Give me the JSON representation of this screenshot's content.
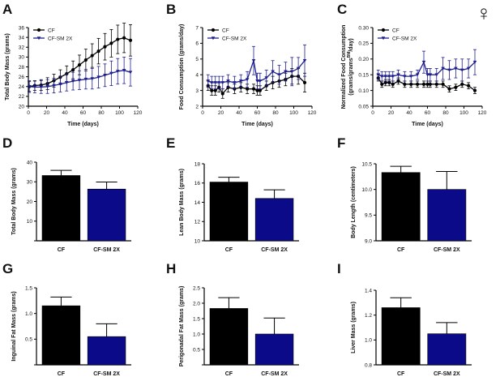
{
  "figure": {
    "sex_symbol": "♀"
  },
  "chart_data": [
    {
      "panel": "A",
      "type": "line",
      "xlabel": "Time (days)",
      "ylabel": "Total Body Mass (grams)",
      "xlim": [
        0,
        120
      ],
      "ylim": [
        20,
        36
      ],
      "xticks": [
        0,
        20,
        40,
        60,
        80,
        100,
        120
      ],
      "yticks": [
        20,
        22,
        24,
        26,
        28,
        30,
        32,
        34,
        36
      ],
      "legend": "top-left",
      "x": [
        1,
        7,
        14,
        21,
        28,
        35,
        42,
        49,
        56,
        63,
        70,
        77,
        84,
        91,
        98,
        105,
        112
      ],
      "series": [
        {
          "name": "CF",
          "color": "#000000",
          "values": [
            24.0,
            24.2,
            24.3,
            24.6,
            25.2,
            25.9,
            26.6,
            27.4,
            28.4,
            29.4,
            30.3,
            31.2,
            32.1,
            32.8,
            33.6,
            33.9,
            33.4
          ],
          "errors": [
            1.0,
            1.0,
            1.1,
            1.2,
            1.3,
            1.5,
            1.6,
            1.8,
            2.0,
            2.2,
            2.4,
            2.6,
            2.7,
            2.8,
            2.9,
            3.0,
            3.2
          ]
        },
        {
          "name": "CF-SM 2X",
          "color": "#1f1f8f",
          "values": [
            24.0,
            23.9,
            23.9,
            24.0,
            24.2,
            24.5,
            24.8,
            25.1,
            25.3,
            25.5,
            25.6,
            25.9,
            26.3,
            26.7,
            27.1,
            27.3,
            26.9
          ],
          "errors": [
            1.2,
            1.2,
            1.3,
            1.4,
            1.5,
            1.6,
            1.7,
            1.8,
            1.9,
            2.0,
            2.1,
            2.2,
            2.3,
            2.5,
            2.6,
            2.7,
            2.8
          ]
        }
      ]
    },
    {
      "panel": "B",
      "type": "line",
      "xlabel": "Time (days)",
      "ylabel": "Food Consumption (grams/day)",
      "xlim": [
        0,
        120
      ],
      "ylim": [
        2,
        7
      ],
      "xticks": [
        0,
        20,
        40,
        60,
        80,
        100,
        120
      ],
      "yticks": [
        2,
        3,
        4,
        5,
        6,
        7
      ],
      "legend": "top-left",
      "x": [
        6,
        10,
        14,
        18,
        22,
        28,
        35,
        42,
        49,
        56,
        60,
        63,
        70,
        77,
        84,
        91,
        98,
        105,
        112
      ],
      "series": [
        {
          "name": "CF",
          "color": "#000000",
          "values": [
            3.3,
            3.0,
            3.0,
            3.2,
            2.8,
            3.2,
            3.1,
            3.2,
            3.1,
            3.1,
            3.0,
            3.0,
            3.3,
            3.5,
            3.6,
            3.7,
            3.9,
            3.9,
            3.5
          ],
          "errors": [
            0.3,
            0.3,
            0.3,
            0.3,
            0.3,
            0.3,
            0.3,
            0.3,
            0.3,
            0.3,
            0.3,
            0.3,
            0.3,
            0.4,
            0.4,
            0.4,
            0.5,
            0.5,
            0.6
          ]
        },
        {
          "name": "CF-SM 2X",
          "color": "#1f1f8f",
          "values": [
            3.6,
            3.5,
            3.5,
            3.5,
            3.5,
            3.6,
            3.5,
            3.6,
            3.7,
            4.9,
            3.6,
            3.6,
            3.8,
            4.2,
            4.0,
            4.2,
            4.2,
            4.4,
            4.9
          ],
          "errors": [
            0.4,
            0.4,
            0.4,
            0.4,
            0.4,
            0.4,
            0.4,
            0.4,
            0.5,
            0.9,
            0.5,
            0.5,
            0.5,
            0.7,
            0.6,
            0.6,
            0.9,
            0.7,
            1.0
          ]
        }
      ]
    },
    {
      "panel": "C",
      "type": "line",
      "xlabel": "Time (days)",
      "ylabel_line1": "Normalized Food Consumption",
      "ylabel_line2": "(grams/grams",
      "ylabel_sup": "BM",
      "ylabel_line2_end": "/day)",
      "xlim": [
        0,
        120
      ],
      "ylim": [
        0.05,
        0.3
      ],
      "xticks": [
        0,
        20,
        40,
        60,
        80,
        100,
        120
      ],
      "yticks": [
        0.05,
        0.1,
        0.15,
        0.2,
        0.25,
        0.3
      ],
      "ytick_labels": [
        "0.05",
        "0.10",
        "0.15",
        "0.20",
        "0.25",
        "0.30"
      ],
      "legend": "top-left",
      "x": [
        6,
        10,
        14,
        18,
        22,
        28,
        35,
        42,
        49,
        56,
        60,
        63,
        70,
        77,
        84,
        91,
        98,
        105,
        112
      ],
      "series": [
        {
          "name": "CF",
          "color": "#000000",
          "values": [
            0.14,
            0.12,
            0.125,
            0.125,
            0.12,
            0.13,
            0.12,
            0.12,
            0.12,
            0.12,
            0.12,
            0.12,
            0.12,
            0.12,
            0.105,
            0.11,
            0.12,
            0.115,
            0.1
          ],
          "errors": [
            0.01,
            0.01,
            0.01,
            0.01,
            0.01,
            0.01,
            0.01,
            0.01,
            0.01,
            0.01,
            0.01,
            0.01,
            0.01,
            0.01,
            0.01,
            0.01,
            0.01,
            0.01,
            0.01
          ]
        },
        {
          "name": "CF-SM 2X",
          "color": "#1f1f8f",
          "values": [
            0.15,
            0.145,
            0.145,
            0.145,
            0.145,
            0.15,
            0.145,
            0.145,
            0.15,
            0.19,
            0.15,
            0.15,
            0.15,
            0.17,
            0.165,
            0.17,
            0.165,
            0.17,
            0.19
          ],
          "errors": [
            0.015,
            0.015,
            0.015,
            0.015,
            0.015,
            0.015,
            0.015,
            0.015,
            0.015,
            0.035,
            0.02,
            0.02,
            0.02,
            0.035,
            0.03,
            0.03,
            0.035,
            0.03,
            0.04
          ]
        }
      ]
    },
    {
      "panel": "D",
      "type": "bar",
      "ylabel": "Total Body Mass (grams)",
      "categories": [
        "CF",
        "CF-SM 2X"
      ],
      "colors": [
        "#000000",
        "#0b0b8a"
      ],
      "values": [
        33.2,
        26.3
      ],
      "errors": [
        2.6,
        3.6
      ],
      "ylim": [
        0,
        40
      ],
      "yticks": [
        0,
        10,
        20,
        30,
        40
      ],
      "ytick_labels": [
        "",
        "10",
        "20",
        "30",
        "40"
      ]
    },
    {
      "panel": "E",
      "type": "bar",
      "ylabel": "Lean Body Mass (grams)",
      "categories": [
        "CF",
        "CF-SM 2X"
      ],
      "colors": [
        "#000000",
        "#0b0b8a"
      ],
      "values": [
        16.1,
        14.4
      ],
      "errors": [
        0.5,
        0.9
      ],
      "ylim": [
        10,
        18
      ],
      "yticks": [
        10,
        12,
        14,
        16,
        18
      ],
      "ytick_labels": [
        "10",
        "12",
        "14",
        "16",
        "18"
      ]
    },
    {
      "panel": "F",
      "type": "bar",
      "ylabel": "Body Length (centimeters)",
      "categories": [
        "CF",
        "CF-SM 2X"
      ],
      "colors": [
        "#000000",
        "#0b0b8a"
      ],
      "values": [
        10.33,
        10.0
      ],
      "errors": [
        0.12,
        0.35
      ],
      "ylim": [
        9.0,
        10.5
      ],
      "yticks": [
        9.0,
        9.5,
        10.0,
        10.5
      ],
      "ytick_labels": [
        "9.0",
        "9.5",
        "10.0",
        "10.5"
      ]
    },
    {
      "panel": "G",
      "type": "bar",
      "ylabel": "Inguinal Fat Mass (grams)",
      "categories": [
        "CF",
        "CF-SM 2X"
      ],
      "colors": [
        "#000000",
        "#0b0b8a"
      ],
      "values": [
        1.15,
        0.55
      ],
      "errors": [
        0.17,
        0.25
      ],
      "ylim": [
        0,
        1.5
      ],
      "yticks": [
        0,
        0.5,
        1.0,
        1.5
      ],
      "ytick_labels": [
        "",
        "0.5",
        "1.0",
        "1.5"
      ]
    },
    {
      "panel": "H",
      "type": "bar",
      "ylabel": "Perigonadal Fat Mass (grams)",
      "categories": [
        "CF",
        "CF-SM 2X"
      ],
      "colors": [
        "#000000",
        "#0b0b8a"
      ],
      "values": [
        1.83,
        1.0
      ],
      "errors": [
        0.35,
        0.52
      ],
      "ylim": [
        0,
        2.5
      ],
      "yticks": [
        0,
        0.5,
        1.0,
        1.5,
        2.0,
        2.5
      ],
      "ytick_labels": [
        "",
        "0.5",
        "1.0",
        "1.5",
        "2.0",
        "2.5"
      ]
    },
    {
      "panel": "I",
      "type": "bar",
      "ylabel": "Liver Mass (grams)",
      "categories": [
        "CF",
        "CF-SM 2X"
      ],
      "colors": [
        "#000000",
        "#0b0b8a"
      ],
      "values": [
        1.26,
        1.05
      ],
      "errors": [
        0.08,
        0.09
      ],
      "ylim": [
        0.8,
        1.4
      ],
      "yticks": [
        0.8,
        1.0,
        1.2,
        1.4
      ],
      "ytick_labels": [
        "0.8",
        "1.0",
        "1.2",
        "1.4"
      ]
    }
  ]
}
